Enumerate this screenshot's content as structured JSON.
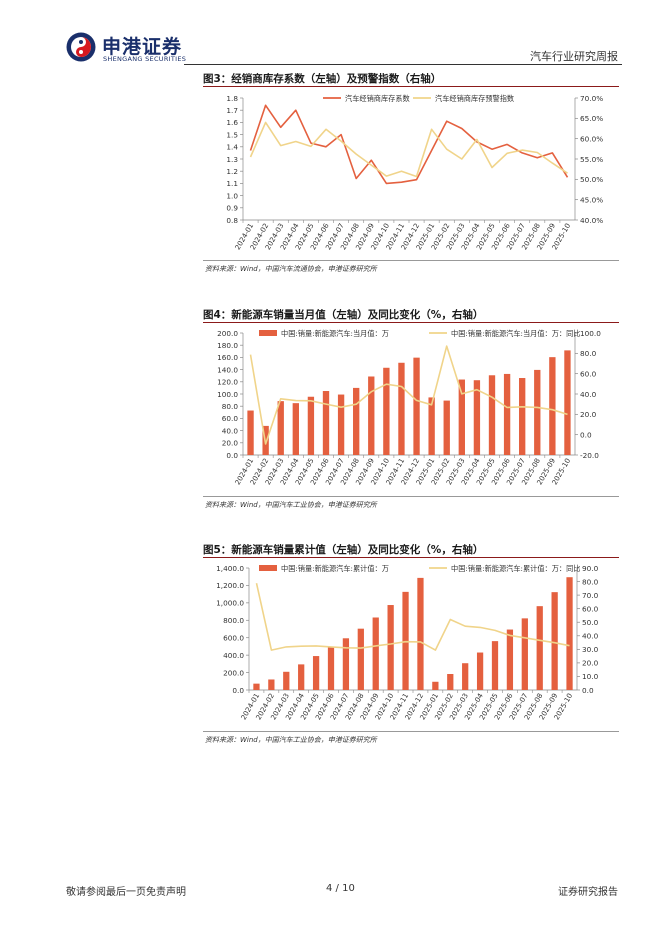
{
  "header": {
    "logo_cn": "申港证券",
    "logo_en": "SHENGANG SECURITIES",
    "report_type": "汽车行业研究周报"
  },
  "colors": {
    "bar": "#e4603f",
    "line_orange": "#e4603f",
    "line_yellow": "#f0d48a",
    "title_rule": "#8b1a1a",
    "logo_blue": "#1a2f6b",
    "logo_red": "#d71920"
  },
  "figures": [
    {
      "title": "图3：经销商库存系数（左轴）及预警指数（右轴）",
      "source": "资料来源：Wind，中国汽车流通协会，申港证券研究所"
    },
    {
      "title": "图4：新能源车销量当月值（左轴）及同比变化（%，右轴）",
      "source": "资料来源：Wind，中国汽车工业协会，申港证券研究所"
    },
    {
      "title": "图5：新能源车销量累计值（左轴）及同比变化（%，右轴）",
      "source": "资料来源：Wind，中国汽车工业协会，申港证券研究所"
    }
  ],
  "footer": {
    "disclaimer": "敬请参阅最后一页免责声明",
    "page": "4 / 10",
    "label": "证券研究报告"
  },
  "chart_data": [
    {
      "type": "line",
      "title": "图3：经销商库存系数（左轴）及预警指数（右轴）",
      "categories": [
        "2024-01",
        "2024-02",
        "2024-03",
        "2024-04",
        "2024-05",
        "2024-06",
        "2024-07",
        "2024-08",
        "2024-09",
        "2024-10",
        "2024-11",
        "2024-12",
        "2025-01",
        "2025-02",
        "2025-03",
        "2025-04",
        "2025-05",
        "2025-06",
        "2025-07",
        "2025-08",
        "2025-09",
        "2025-10"
      ],
      "left_axis": {
        "min": 0.8,
        "max": 1.8,
        "step": 0.1,
        "decimals": 1,
        "suffix": ""
      },
      "right_axis": {
        "min": 40,
        "max": 70,
        "step": 5,
        "decimals": 1,
        "suffix": "%"
      },
      "series": [
        {
          "name": "汽车经销商库存系数",
          "kind": "line",
          "axis": "left",
          "color": "#e4603f",
          "values": [
            1.37,
            1.74,
            1.56,
            1.7,
            1.43,
            1.4,
            1.5,
            1.14,
            1.29,
            1.1,
            1.11,
            1.13,
            1.37,
            1.61,
            1.55,
            1.44,
            1.38,
            1.42,
            1.35,
            1.31,
            1.35,
            1.15
          ]
        },
        {
          "name": "汽车经销商库存预警指数",
          "kind": "line",
          "axis": "right",
          "color": "#f0d48a",
          "values": [
            55.5,
            64.0,
            58.3,
            59.3,
            58.1,
            62.3,
            59.4,
            56.2,
            53.5,
            50.8,
            52.0,
            50.7,
            62.3,
            57.4,
            55.0,
            59.8,
            52.9,
            56.4,
            57.2,
            56.6,
            54.0,
            51.5
          ]
        }
      ]
    },
    {
      "type": "bar",
      "title": "图4：新能源车销量当月值（左轴）及同比变化（%，右轴）",
      "categories": [
        "2024-01",
        "2024-02",
        "2024-03",
        "2024-04",
        "2024-05",
        "2024-06",
        "2024-07",
        "2024-08",
        "2024-09",
        "2024-10",
        "2024-11",
        "2024-12",
        "2025-01",
        "2025-02",
        "2025-03",
        "2025-04",
        "2025-05",
        "2025-06",
        "2025-07",
        "2025-08",
        "2025-09",
        "2025-10"
      ],
      "left_axis": {
        "min": 0,
        "max": 200,
        "step": 20,
        "decimals": 1,
        "suffix": ""
      },
      "right_axis": {
        "min": -20,
        "max": 100,
        "step": 20,
        "decimals": 1,
        "suffix": ""
      },
      "series": [
        {
          "name": "中国:销量:新能源汽车:当月值：万",
          "kind": "bar",
          "axis": "left",
          "color": "#e4603f",
          "values": [
            72.9,
            47.7,
            88.3,
            85.0,
            95.5,
            104.9,
            99.1,
            110.0,
            128.7,
            143.0,
            151.2,
            159.6,
            94.4,
            89.2,
            123.7,
            122.6,
            130.7,
            132.9,
            126.2,
            139.5,
            160.4,
            171.5
          ]
        },
        {
          "name": "中国:销量:新能源汽车:当月值：万：同比",
          "kind": "line",
          "axis": "right",
          "color": "#f0d48a",
          "values": [
            78.8,
            -9.2,
            35.3,
            33.5,
            33.3,
            30.1,
            27.0,
            30.0,
            42.3,
            49.6,
            47.4,
            33.7,
            29.4,
            87.1,
            40.1,
            44.2,
            36.9,
            26.7,
            27.4,
            26.8,
            24.6,
            19.9
          ]
        }
      ]
    },
    {
      "type": "bar",
      "title": "图5：新能源车销量累计值（左轴）及同比变化（%，右轴）",
      "categories": [
        "2024-01",
        "2024-02",
        "2024-03",
        "2024-04",
        "2024-05",
        "2024-06",
        "2024-07",
        "2024-08",
        "2024-09",
        "2024-10",
        "2024-11",
        "2024-12",
        "2025-01",
        "2025-02",
        "2025-03",
        "2025-04",
        "2025-05",
        "2025-06",
        "2025-07",
        "2025-08",
        "2025-09",
        "2025-10"
      ],
      "left_axis": {
        "min": 0,
        "max": 1400,
        "step": 200,
        "decimals": 1,
        "suffix": "",
        "thousands": true
      },
      "right_axis": {
        "min": 0,
        "max": 90,
        "step": 10,
        "decimals": 1,
        "suffix": ""
      },
      "series": [
        {
          "name": "中国:销量:新能源汽车:累计值：万",
          "kind": "bar",
          "axis": "left",
          "color": "#e4603f",
          "values": [
            72.9,
            120.7,
            209.0,
            294.0,
            389.5,
            494.4,
            593.4,
            703.7,
            832.0,
            975.0,
            1126.2,
            1286.6,
            94.4,
            183.6,
            307.4,
            430.0,
            560.8,
            693.7,
            822.0,
            962.0,
            1122.8,
            1294.3
          ]
        },
        {
          "name": "中国:销量:新能源汽车:累计值：万：同比",
          "kind": "line",
          "axis": "right",
          "color": "#f0d48a",
          "values": [
            78.8,
            29.4,
            31.8,
            32.3,
            32.5,
            31.8,
            31.1,
            30.9,
            32.5,
            33.9,
            35.6,
            35.5,
            29.4,
            52.0,
            47.1,
            46.2,
            44.0,
            40.3,
            38.5,
            36.7,
            34.9,
            32.7
          ]
        }
      ]
    }
  ]
}
